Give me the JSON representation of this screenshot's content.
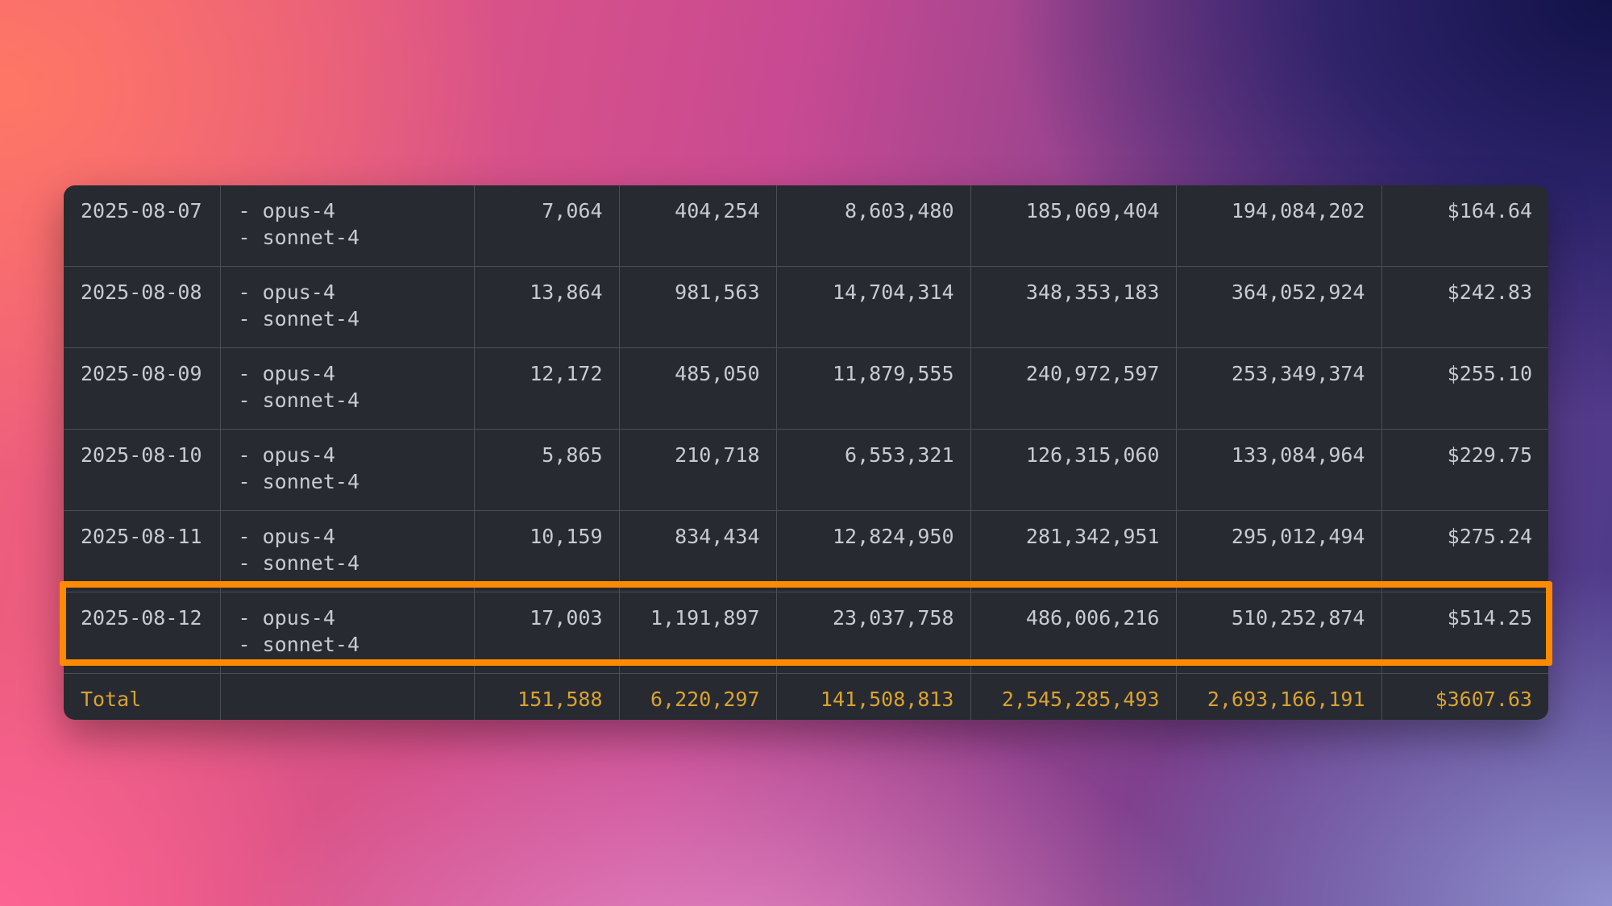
{
  "usage_table": {
    "rows": [
      {
        "date": "2025-08-07",
        "models": [
          "- opus-4",
          "- sonnet-4"
        ],
        "c1": "7,064",
        "c2": "404,254",
        "c3": "8,603,480",
        "c4": "185,069,404",
        "c5": "194,084,202",
        "cost": "$164.64"
      },
      {
        "date": "2025-08-08",
        "models": [
          "- opus-4",
          "- sonnet-4"
        ],
        "c1": "13,864",
        "c2": "981,563",
        "c3": "14,704,314",
        "c4": "348,353,183",
        "c5": "364,052,924",
        "cost": "$242.83"
      },
      {
        "date": "2025-08-09",
        "models": [
          "- opus-4",
          "- sonnet-4"
        ],
        "c1": "12,172",
        "c2": "485,050",
        "c3": "11,879,555",
        "c4": "240,972,597",
        "c5": "253,349,374",
        "cost": "$255.10"
      },
      {
        "date": "2025-08-10",
        "models": [
          "- opus-4",
          "- sonnet-4"
        ],
        "c1": "5,865",
        "c2": "210,718",
        "c3": "6,553,321",
        "c4": "126,315,060",
        "c5": "133,084,964",
        "cost": "$229.75"
      },
      {
        "date": "2025-08-11",
        "models": [
          "- opus-4",
          "- sonnet-4"
        ],
        "c1": "10,159",
        "c2": "834,434",
        "c3": "12,824,950",
        "c4": "281,342,951",
        "c5": "295,012,494",
        "cost": "$275.24"
      },
      {
        "date": "2025-08-12",
        "models": [
          "- opus-4",
          "- sonnet-4"
        ],
        "c1": "17,003",
        "c2": "1,191,897",
        "c3": "23,037,758",
        "c4": "486,006,216",
        "c5": "510,252,874",
        "cost": "$514.25"
      }
    ],
    "total": {
      "label": "Total",
      "models": "",
      "c1": "151,588",
      "c2": "6,220,297",
      "c3": "141,508,813",
      "c4": "2,545,285,493",
      "c5": "2,693,166,191",
      "cost": "$3607.63"
    },
    "highlighted_row_index": 5
  },
  "colors": {
    "table_background": "#272a30",
    "grid_line": "#4a4e56",
    "text": "#c7cbd2",
    "total_text": "#d9a233",
    "highlight_border": "#ff8a00"
  }
}
